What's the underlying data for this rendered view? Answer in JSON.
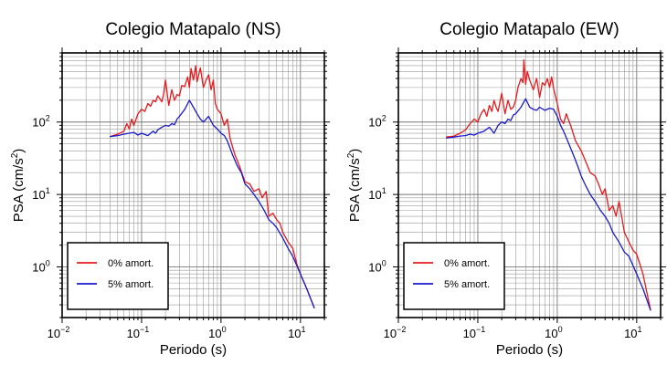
{
  "chart_data": [
    {
      "type": "line",
      "title": "Colegio Matapalo (NS)",
      "xlabel": "Periodo (s)",
      "ylabel_main": "PSA (cm/s",
      "ylabel_sup": "2",
      "ylabel_tail": ")",
      "x_scale": "log",
      "y_scale": "log",
      "xlim": [
        0.01,
        20
      ],
      "ylim": [
        0.2,
        900
      ],
      "grid": true,
      "legend_position": "bottom-left",
      "x_ticks": [
        {
          "base": "10",
          "exp": "−2"
        },
        {
          "base": "10",
          "exp": "−1"
        },
        {
          "base": "10",
          "exp": "0"
        },
        {
          "base": "10",
          "exp": "1"
        }
      ],
      "y_ticks": [
        {
          "base": "10",
          "exp": "0"
        },
        {
          "base": "10",
          "exp": "1"
        },
        {
          "base": "10",
          "exp": "2"
        }
      ],
      "series": [
        {
          "name": "0% amort.",
          "color": "#e8191c",
          "x": [
            0.04,
            0.05,
            0.06,
            0.065,
            0.07,
            0.075,
            0.08,
            0.09,
            0.1,
            0.11,
            0.12,
            0.13,
            0.14,
            0.15,
            0.16,
            0.17,
            0.18,
            0.19,
            0.2,
            0.22,
            0.24,
            0.26,
            0.28,
            0.3,
            0.32,
            0.35,
            0.38,
            0.4,
            0.42,
            0.45,
            0.48,
            0.5,
            0.55,
            0.6,
            0.65,
            0.7,
            0.75,
            0.8,
            0.85,
            0.9,
            1.0,
            1.1,
            1.2,
            1.3,
            1.4,
            1.5,
            1.7,
            2.0,
            2.3,
            2.6,
            3.0,
            3.3,
            3.7,
            4.0,
            4.5,
            5.0,
            5.5,
            6.0,
            7.0,
            8.0,
            9.0,
            10.0,
            12.0,
            15.0
          ],
          "y": [
            63,
            68,
            75,
            95,
            80,
            110,
            90,
            130,
            150,
            140,
            180,
            165,
            200,
            190,
            230,
            210,
            190,
            250,
            380,
            170,
            280,
            200,
            240,
            230,
            320,
            310,
            420,
            300,
            550,
            380,
            600,
            360,
            560,
            300,
            380,
            450,
            280,
            380,
            180,
            150,
            130,
            90,
            110,
            60,
            45,
            35,
            25,
            15,
            14,
            11,
            12,
            9,
            11,
            5,
            5.5,
            4.5,
            4,
            3,
            2.2,
            1.8,
            1.1,
            0.8,
            0.5,
            0.27
          ]
        },
        {
          "name": "5% amort.",
          "color": "#1a1acc",
          "x": [
            0.04,
            0.05,
            0.06,
            0.07,
            0.08,
            0.09,
            0.1,
            0.12,
            0.14,
            0.15,
            0.16,
            0.18,
            0.2,
            0.22,
            0.24,
            0.26,
            0.28,
            0.3,
            0.35,
            0.4,
            0.45,
            0.5,
            0.55,
            0.6,
            0.7,
            0.8,
            0.9,
            1.0,
            1.1,
            1.2,
            1.4,
            1.6,
            1.8,
            2.0,
            2.3,
            2.6,
            3.0,
            3.5,
            4.0,
            4.5,
            5.0,
            6.0,
            7.0,
            8.0,
            10.0,
            12.0,
            15.0
          ],
          "y": [
            63,
            65,
            68,
            70,
            72,
            66,
            70,
            65,
            75,
            70,
            78,
            85,
            90,
            88,
            95,
            92,
            110,
            120,
            150,
            200,
            160,
            130,
            110,
            100,
            120,
            90,
            80,
            70,
            65,
            55,
            35,
            25,
            20,
            14,
            12,
            10,
            8,
            6,
            4.5,
            4,
            3.5,
            2.5,
            1.8,
            1.4,
            0.8,
            0.5,
            0.27
          ]
        }
      ]
    },
    {
      "type": "line",
      "title": "Colegio Matapalo (EW)",
      "xlabel": "Periodo (s)",
      "ylabel_main": "PSA (cm/s",
      "ylabel_sup": "2",
      "ylabel_tail": ")",
      "x_scale": "log",
      "y_scale": "log",
      "xlim": [
        0.01,
        20
      ],
      "ylim": [
        0.2,
        900
      ],
      "grid": true,
      "legend_position": "bottom-left",
      "x_ticks": [
        {
          "base": "10",
          "exp": "−2"
        },
        {
          "base": "10",
          "exp": "−1"
        },
        {
          "base": "10",
          "exp": "0"
        },
        {
          "base": "10",
          "exp": "1"
        }
      ],
      "y_ticks": [
        {
          "base": "10",
          "exp": "0"
        },
        {
          "base": "10",
          "exp": "1"
        },
        {
          "base": "10",
          "exp": "2"
        }
      ],
      "series": [
        {
          "name": "0% amort.",
          "color": "#e8191c",
          "x": [
            0.04,
            0.05,
            0.06,
            0.07,
            0.08,
            0.09,
            0.1,
            0.11,
            0.12,
            0.13,
            0.14,
            0.15,
            0.16,
            0.17,
            0.18,
            0.2,
            0.22,
            0.24,
            0.26,
            0.28,
            0.3,
            0.32,
            0.35,
            0.37,
            0.38,
            0.4,
            0.42,
            0.45,
            0.5,
            0.55,
            0.6,
            0.65,
            0.7,
            0.75,
            0.8,
            0.85,
            0.9,
            1.0,
            1.1,
            1.2,
            1.3,
            1.5,
            1.7,
            2.0,
            2.3,
            2.6,
            3.0,
            3.3,
            3.7,
            4.0,
            4.5,
            5.0,
            5.5,
            6.0,
            7.0,
            8.0,
            9.0,
            10.0,
            12.0,
            15.0
          ],
          "y": [
            62,
            64,
            70,
            78,
            95,
            110,
            100,
            130,
            150,
            120,
            170,
            140,
            200,
            160,
            140,
            250,
            130,
            200,
            150,
            160,
            200,
            300,
            400,
            350,
            720,
            330,
            500,
            380,
            280,
            400,
            220,
            350,
            320,
            400,
            300,
            420,
            290,
            180,
            110,
            95,
            130,
            85,
            55,
            40,
            28,
            20,
            18,
            14,
            10,
            12,
            6,
            7,
            5,
            8,
            3,
            2.2,
            1.7,
            1.5,
            0.8,
            0.25
          ]
        },
        {
          "name": "5% amort.",
          "color": "#1a1acc",
          "x": [
            0.04,
            0.05,
            0.06,
            0.07,
            0.08,
            0.09,
            0.1,
            0.12,
            0.14,
            0.16,
            0.18,
            0.2,
            0.22,
            0.24,
            0.26,
            0.28,
            0.3,
            0.35,
            0.4,
            0.45,
            0.5,
            0.55,
            0.6,
            0.7,
            0.8,
            0.9,
            1.0,
            1.1,
            1.2,
            1.4,
            1.6,
            1.8,
            2.0,
            2.3,
            2.6,
            3.0,
            3.5,
            4.0,
            4.5,
            5.0,
            6.0,
            7.0,
            8.0,
            10.0,
            12.0,
            15.0
          ],
          "y": [
            60,
            62,
            64,
            65,
            68,
            66,
            70,
            75,
            85,
            70,
            90,
            100,
            95,
            110,
            105,
            125,
            130,
            160,
            210,
            160,
            150,
            145,
            160,
            145,
            155,
            150,
            120,
            90,
            75,
            50,
            35,
            25,
            18,
            13,
            10,
            8,
            6,
            5,
            4,
            3,
            2.2,
            1.6,
            1.4,
            0.8,
            0.5,
            0.25
          ]
        }
      ]
    }
  ]
}
